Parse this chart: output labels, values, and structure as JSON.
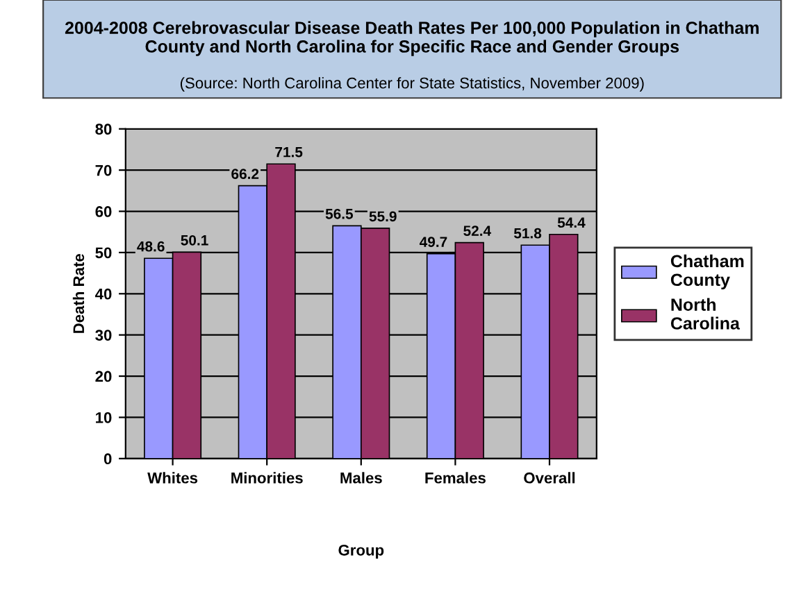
{
  "chart_data": {
    "type": "bar",
    "title": "2004-2008 Cerebrovascular Disease Death Rates Per 100,000 Population in Chatham County and North Carolina for Specific Race and Gender Groups",
    "subtitle": "(Source: North Carolina Center for State Statistics, November 2009)",
    "xlabel": "Group",
    "ylabel": "Death Rate",
    "categories": [
      "Whites",
      "Minorities",
      "Males",
      "Females",
      "Overall"
    ],
    "series": [
      {
        "name": "Chatham County",
        "color": "#9999ff",
        "values": [
          48.6,
          66.2,
          56.5,
          49.7,
          51.8
        ]
      },
      {
        "name": "North Carolina",
        "color": "#993366",
        "values": [
          50.1,
          71.5,
          55.9,
          52.4,
          54.4
        ]
      }
    ],
    "ylim": [
      0,
      80
    ],
    "yticks": [
      0,
      10,
      20,
      30,
      40,
      50,
      60,
      70,
      80
    ],
    "grid": "y",
    "legend": "right",
    "data_labels": true
  }
}
